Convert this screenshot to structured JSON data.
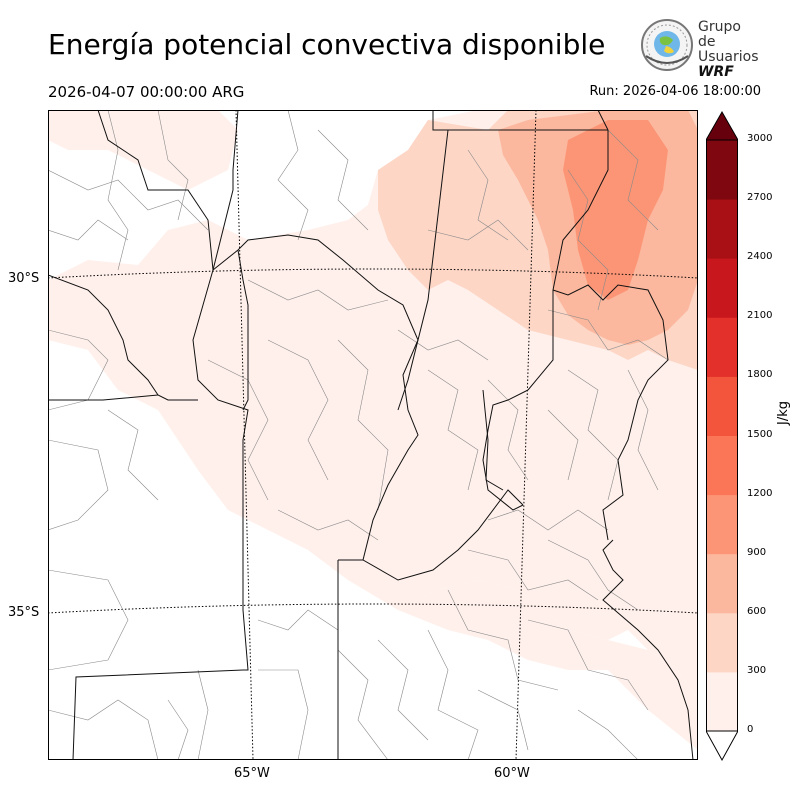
{
  "header": {
    "title": "Energía potencial convectiva disponible",
    "valid_time": "2026-04-07 00:00:00 ARG",
    "run": "Run: 2026-04-06 18:00:00"
  },
  "logo": {
    "line1": "Grupo de",
    "line2": "Usuarios",
    "line3": "WRF"
  },
  "map": {
    "lat_labels": [
      "30°S",
      "35°S"
    ],
    "lon_labels": [
      "65°W",
      "60°W"
    ]
  },
  "colorbar": {
    "unit": "J/kg",
    "ticks": [
      "0",
      "300",
      "600",
      "900",
      "1200",
      "1500",
      "1800",
      "2100",
      "2400",
      "2700",
      "3000"
    ],
    "colors": [
      "#fff0eb",
      "#fdd6c6",
      "#fcb89e",
      "#fc9576",
      "#fb7557",
      "#f2553c",
      "#e3302a",
      "#c8171d",
      "#a91016",
      "#7f070f"
    ],
    "extend_max_color": "#67000d"
  }
}
